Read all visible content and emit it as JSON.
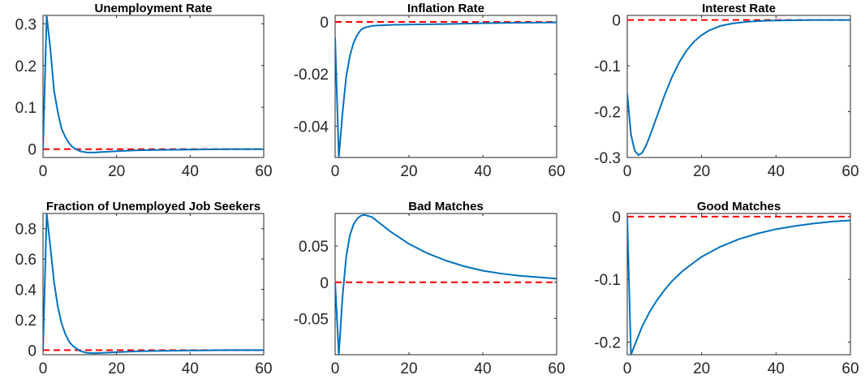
{
  "colors": {
    "response": "#0072bd",
    "zero": "#ff0000",
    "axis": "#262626"
  },
  "chart_data": [
    {
      "type": "line",
      "title": "Unemployment Rate",
      "xlim": [
        0,
        60
      ],
      "ylim": [
        -0.02,
        0.32
      ],
      "xticks": [
        0,
        20,
        40,
        60
      ],
      "xtick_labels": [
        "0",
        "20",
        "40",
        "60"
      ],
      "yticks": [
        0,
        0.1,
        0.2,
        0.3
      ],
      "ytick_labels": [
        "0",
        "0.1",
        "0.2",
        "0.3"
      ],
      "series": [
        {
          "x": [
            0,
            1,
            2,
            3,
            4,
            5,
            6,
            7,
            8,
            10,
            12,
            14,
            16,
            20,
            25,
            30,
            40,
            50,
            60
          ],
          "y": [
            0,
            0.32,
            0.24,
            0.14,
            0.09,
            0.05,
            0.03,
            0.015,
            0.005,
            -0.005,
            -0.008,
            -0.008,
            -0.007,
            -0.005,
            -0.003,
            -0.002,
            -0.001,
            0,
            0
          ]
        }
      ],
      "zero_line": 0
    },
    {
      "type": "line",
      "title": "Inflation Rate",
      "xlim": [
        0,
        60
      ],
      "ylim": [
        -0.052,
        0.0025
      ],
      "xticks": [
        0,
        20,
        40,
        60
      ],
      "xtick_labels": [
        "0",
        "20",
        "40",
        "60"
      ],
      "yticks": [
        -0.04,
        -0.02,
        0
      ],
      "ytick_labels": [
        "-0.04",
        "-0.02",
        "0"
      ],
      "series": [
        {
          "x": [
            0,
            1,
            2,
            3,
            4,
            5,
            6,
            7,
            8,
            10,
            12,
            14,
            16,
            20,
            30,
            40,
            50,
            60
          ],
          "y": [
            -0.006,
            -0.052,
            -0.035,
            -0.021,
            -0.013,
            -0.008,
            -0.005,
            -0.003,
            -0.0022,
            -0.0015,
            -0.0013,
            -0.0012,
            -0.0011,
            -0.001,
            -0.0008,
            -0.0005,
            -0.0003,
            -0.0002
          ]
        }
      ],
      "zero_line": 0
    },
    {
      "type": "line",
      "title": "Interest Rate",
      "xlim": [
        0,
        60
      ],
      "ylim": [
        -0.3,
        0.01
      ],
      "xticks": [
        0,
        20,
        40,
        60
      ],
      "xtick_labels": [
        "0",
        "20",
        "40",
        "60"
      ],
      "yticks": [
        -0.3,
        -0.2,
        -0.1,
        0
      ],
      "ytick_labels": [
        "-0.3",
        "-0.2",
        "-0.1",
        "0"
      ],
      "series": [
        {
          "x": [
            0,
            1,
            2,
            3,
            4,
            5,
            6,
            8,
            10,
            12,
            14,
            16,
            18,
            20,
            22,
            25,
            28,
            32,
            36,
            40,
            50,
            60
          ],
          "y": [
            -0.16,
            -0.25,
            -0.285,
            -0.295,
            -0.29,
            -0.275,
            -0.255,
            -0.21,
            -0.165,
            -0.125,
            -0.092,
            -0.066,
            -0.047,
            -0.033,
            -0.023,
            -0.013,
            -0.008,
            -0.004,
            -0.002,
            -0.001,
            0,
            0
          ]
        }
      ],
      "zero_line": 0
    },
    {
      "type": "line",
      "title": "Fraction of Unemployed Job Seekers",
      "xlim": [
        0,
        60
      ],
      "ylim": [
        -0.03,
        0.9
      ],
      "xticks": [
        0,
        20,
        40,
        60
      ],
      "xtick_labels": [
        "0",
        "20",
        "40",
        "60"
      ],
      "yticks": [
        0,
        0.2,
        0.4,
        0.6,
        0.8
      ],
      "ytick_labels": [
        "0",
        "0.2",
        "0.4",
        "0.6",
        "0.8"
      ],
      "series": [
        {
          "x": [
            0,
            1,
            2,
            3,
            4,
            5,
            6,
            7,
            8,
            10,
            12,
            14,
            16,
            20,
            25,
            30,
            40,
            50,
            60
          ],
          "y": [
            0,
            0.9,
            0.68,
            0.45,
            0.29,
            0.18,
            0.11,
            0.06,
            0.03,
            -0.005,
            -0.018,
            -0.02,
            -0.018,
            -0.013,
            -0.008,
            -0.005,
            -0.002,
            0,
            0
          ]
        }
      ],
      "zero_line": 0
    },
    {
      "type": "line",
      "title": "Bad Matches",
      "xlim": [
        0,
        60
      ],
      "ylim": [
        -0.1,
        0.095
      ],
      "xticks": [
        0,
        20,
        40,
        60
      ],
      "xtick_labels": [
        "0",
        "20",
        "40",
        "60"
      ],
      "yticks": [
        -0.05,
        0,
        0.05
      ],
      "ytick_labels": [
        "-0.05",
        "0",
        "0.05"
      ],
      "series": [
        {
          "x": [
            0,
            1,
            2,
            3,
            4,
            5,
            6,
            7,
            8,
            10,
            12,
            15,
            20,
            25,
            30,
            35,
            40,
            45,
            50,
            55,
            60
          ],
          "y": [
            0,
            -0.1,
            -0.02,
            0.035,
            0.065,
            0.08,
            0.088,
            0.092,
            0.093,
            0.09,
            0.082,
            0.07,
            0.053,
            0.04,
            0.03,
            0.022,
            0.016,
            0.012,
            0.009,
            0.007,
            0.005
          ]
        }
      ],
      "zero_line": 0
    },
    {
      "type": "line",
      "title": "Good Matches",
      "xlim": [
        0,
        60
      ],
      "ylim": [
        -0.22,
        0.005
      ],
      "xticks": [
        0,
        20,
        40,
        60
      ],
      "xtick_labels": [
        "0",
        "20",
        "40",
        "60"
      ],
      "yticks": [
        -0.2,
        -0.1,
        0
      ],
      "ytick_labels": [
        "-0.2",
        "-0.1",
        "0"
      ],
      "series": [
        {
          "x": [
            0,
            1,
            2,
            3,
            4,
            6,
            8,
            10,
            12,
            15,
            20,
            25,
            30,
            35,
            40,
            45,
            50,
            55,
            60
          ],
          "y": [
            0,
            -0.22,
            -0.205,
            -0.19,
            -0.175,
            -0.152,
            -0.133,
            -0.117,
            -0.103,
            -0.086,
            -0.064,
            -0.048,
            -0.036,
            -0.027,
            -0.02,
            -0.015,
            -0.011,
            -0.008,
            -0.006
          ]
        }
      ],
      "zero_line": 0
    }
  ]
}
